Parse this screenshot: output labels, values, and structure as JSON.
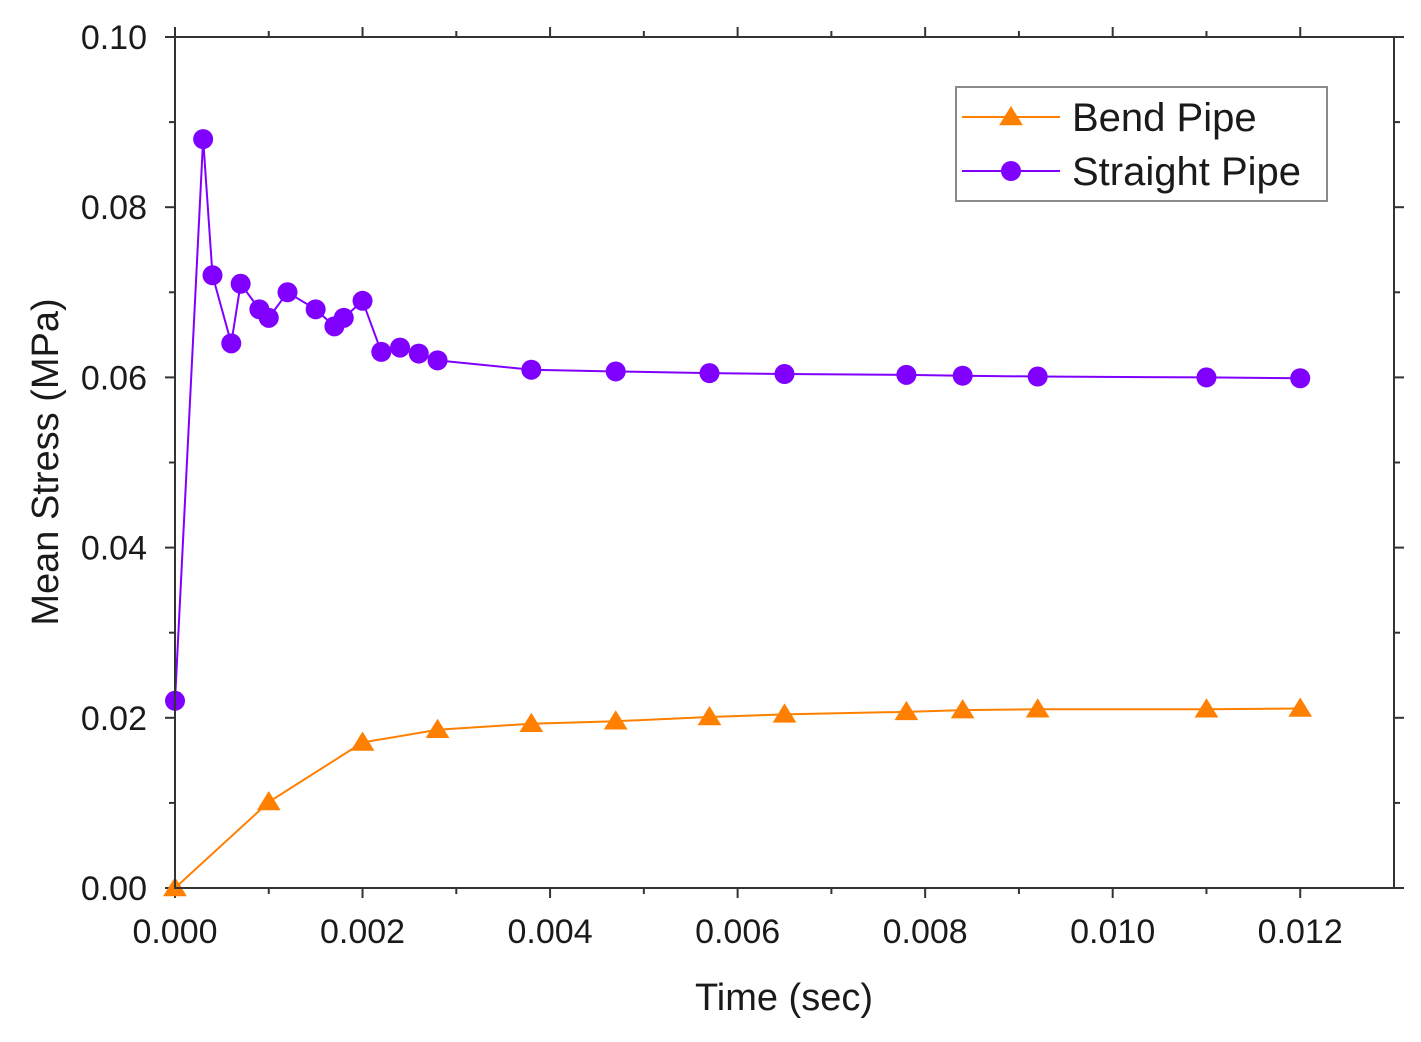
{
  "chart_data": {
    "type": "line",
    "title": "",
    "xlabel": "Time (sec)",
    "ylabel": "Mean Stress (MPa)",
    "xlim": [
      0,
      0.013
    ],
    "ylim": [
      0,
      0.1
    ],
    "xticks": [
      0.0,
      0.002,
      0.004,
      0.006,
      0.008,
      0.01,
      0.012
    ],
    "xtick_labels": [
      "0.000",
      "0.002",
      "0.004",
      "0.006",
      "0.008",
      "0.010",
      "0.012"
    ],
    "yticks": [
      0.0,
      0.02,
      0.04,
      0.06,
      0.08,
      0.1
    ],
    "ytick_labels": [
      "0.00",
      "0.02",
      "0.04",
      "0.06",
      "0.08",
      "0.10"
    ],
    "grid": false,
    "legend_position": "top-right",
    "series": [
      {
        "name": "Bend Pipe",
        "color": "#ff8000",
        "marker": "triangle",
        "x": [
          0.0,
          0.001,
          0.002,
          0.0028,
          0.0038,
          0.0047,
          0.0057,
          0.0065,
          0.0078,
          0.0084,
          0.0092,
          0.011,
          0.012
        ],
        "y": [
          0.0,
          0.0101,
          0.0171,
          0.0186,
          0.0193,
          0.0196,
          0.0201,
          0.0204,
          0.0207,
          0.0209,
          0.021,
          0.021,
          0.0211
        ]
      },
      {
        "name": "Straight Pipe",
        "color": "#8000ff",
        "marker": "circle",
        "x": [
          0.0,
          0.0003,
          0.0004,
          0.0006,
          0.0007,
          0.0009,
          0.001,
          0.0012,
          0.0015,
          0.0017,
          0.0018,
          0.002,
          0.0022,
          0.0024,
          0.0026,
          0.0028,
          0.0038,
          0.0047,
          0.0057,
          0.0065,
          0.0078,
          0.0084,
          0.0092,
          0.011,
          0.012
        ],
        "y": [
          0.022,
          0.088,
          0.072,
          0.064,
          0.071,
          0.068,
          0.067,
          0.07,
          0.068,
          0.066,
          0.067,
          0.069,
          0.063,
          0.0635,
          0.0628,
          0.062,
          0.0609,
          0.0607,
          0.0605,
          0.0604,
          0.0603,
          0.0602,
          0.0601,
          0.06,
          0.0599
        ]
      }
    ]
  }
}
